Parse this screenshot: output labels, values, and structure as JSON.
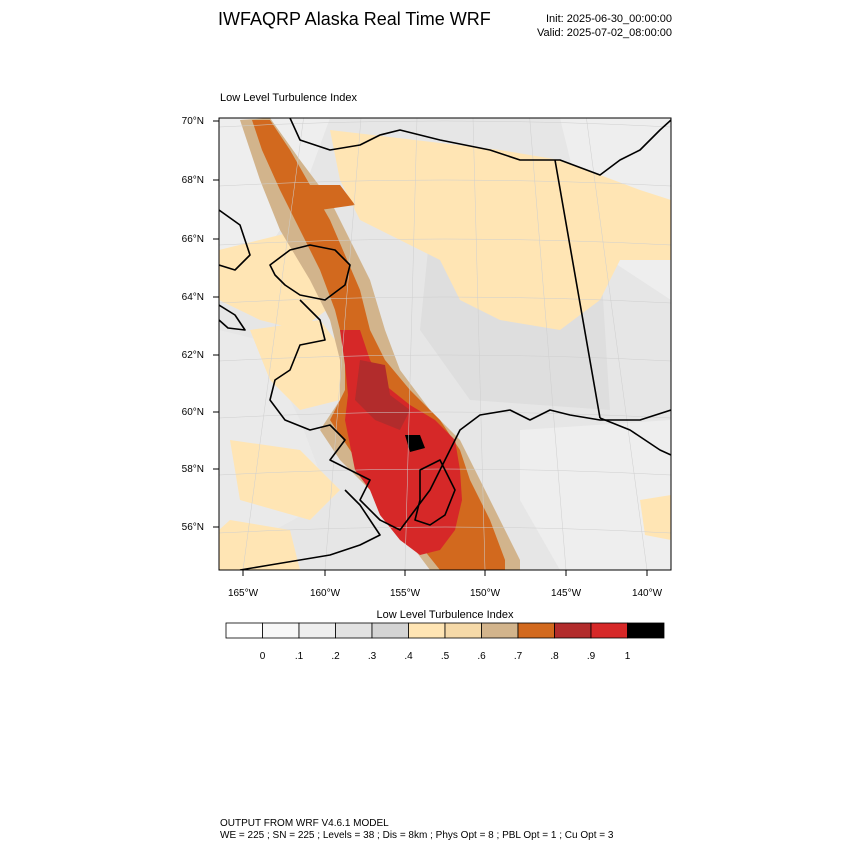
{
  "header": {
    "title": "IWFAQRP Alaska Real Time WRF",
    "init": "Init: 2025-06-30_00:00:00",
    "valid": "Valid: 2025-07-02_08:00:00"
  },
  "plot": {
    "title": "Low Level Turbulence Index",
    "lat_labels": [
      "70°N",
      "68°N",
      "66°N",
      "64°N",
      "62°N",
      "60°N",
      "58°N",
      "56°N"
    ],
    "lon_labels": [
      "165°W",
      "160°W",
      "155°W",
      "150°W",
      "145°W",
      "140°W"
    ]
  },
  "colorbar": {
    "title": "Low Level Turbulence Index",
    "tick_labels": [
      "0",
      ".1",
      ".2",
      ".3",
      ".4",
      ".5",
      ".6",
      ".7",
      ".8",
      ".9",
      "1"
    ],
    "colors": [
      "#ffffff",
      "#f7f7f7",
      "#eeeeee",
      "#e2e2e2",
      "#d4d4d4",
      "#ffe5b4",
      "#f5d9a8",
      "#d2b48c",
      "#d2691e",
      "#b22c2c",
      "#d62828",
      "#000000"
    ]
  },
  "footer": {
    "line1": "OUTPUT FROM WRF V4.6.1 MODEL",
    "line2": "WE = 225 ; SN = 225 ; Levels = 38 ; Dis = 8km ; Phys Opt = 8 ; PBL Opt = 1 ; Cu Opt = 3"
  }
}
